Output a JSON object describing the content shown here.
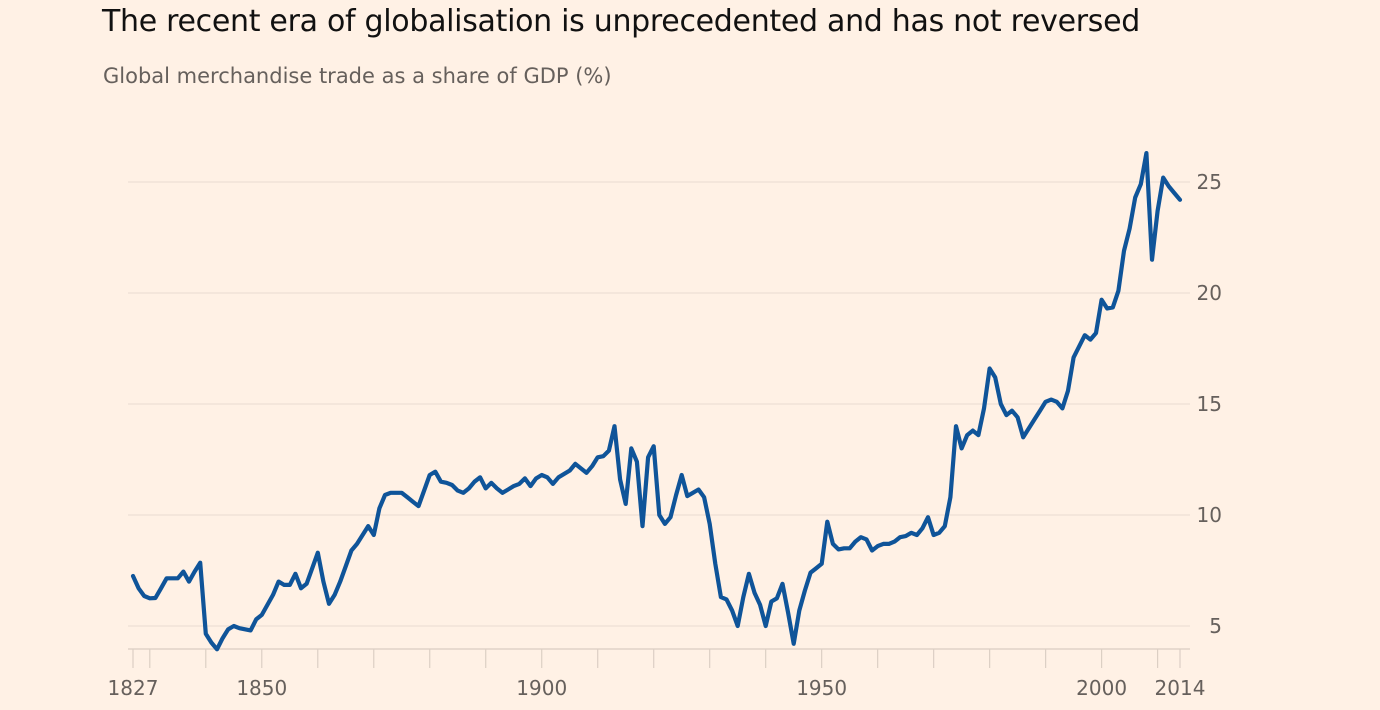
{
  "header": {
    "title": "The recent era of globalisation is unprecedented and has not reversed",
    "subtitle": "Global merchandise trade as a share of GDP (%)"
  },
  "colors": {
    "background": "#FFF1E5",
    "line": "#0F5499",
    "gridline": "#E8DCD1",
    "axis_text": "#66605C",
    "title_text": "#111111"
  },
  "chart_data": {
    "type": "line",
    "title": "The recent era of globalisation is unprecedented and has not reversed",
    "subtitle": "Global merchandise trade as a share of GDP (%)",
    "xlabel": "",
    "ylabel": "Global merchandise trade as a share of GDP (%)",
    "xlim": [
      1827,
      2014
    ],
    "ylim": [
      4,
      26.5
    ],
    "grid": true,
    "y_axis_side": "right",
    "x_ticks": [
      1827,
      1830,
      1840,
      1850,
      1860,
      1870,
      1880,
      1890,
      1900,
      1910,
      1920,
      1930,
      1940,
      1950,
      1960,
      1970,
      1980,
      1990,
      2000,
      2010,
      2014
    ],
    "x_tick_labels": [
      "1827",
      "1850",
      "1900",
      "1950",
      "2000",
      "2014"
    ],
    "y_ticks": [
      5,
      10,
      15,
      20,
      25
    ],
    "y_tick_labels": [
      "5",
      "10",
      "15",
      "20",
      "25"
    ],
    "legend": "none",
    "series": [
      {
        "name": "Global merchandise trade as a share of GDP (%)",
        "x_start": 1827,
        "x_step": 1,
        "values": [
          7.25,
          6.7,
          6.35,
          6.25,
          6.26,
          6.7,
          7.15,
          7.15,
          7.15,
          7.45,
          7.0,
          7.45,
          7.85,
          4.65,
          4.25,
          3.95,
          4.45,
          4.85,
          5.0,
          4.9,
          4.85,
          4.8,
          5.3,
          5.5,
          5.95,
          6.4,
          7.0,
          6.85,
          6.85,
          7.35,
          6.7,
          6.9,
          7.6,
          8.3,
          7.0,
          6.0,
          6.4,
          7.0,
          7.7,
          8.4,
          8.7,
          9.1,
          9.5,
          9.1,
          10.3,
          10.9,
          11.0,
          11.0,
          11.0,
          10.8,
          10.6,
          10.4,
          11.1,
          11.8,
          11.95,
          11.5,
          11.45,
          11.35,
          11.1,
          11.0,
          11.2,
          11.5,
          11.7,
          11.2,
          11.45,
          11.2,
          11.0,
          11.15,
          11.3,
          11.4,
          11.65,
          11.3,
          11.65,
          11.8,
          11.7,
          11.4,
          11.7,
          11.85,
          12.0,
          12.3,
          12.1,
          11.9,
          12.2,
          12.6,
          12.65,
          12.9,
          14.0,
          11.6,
          10.5,
          13.0,
          12.4,
          9.5,
          12.6,
          13.1,
          10.0,
          9.6,
          9.9,
          10.9,
          11.8,
          10.85,
          11.0,
          11.15,
          10.8,
          9.6,
          7.8,
          6.3,
          6.2,
          5.7,
          5.0,
          6.3,
          7.35,
          6.5,
          5.95,
          5.0,
          6.1,
          6.25,
          6.9,
          5.6,
          4.2,
          5.7,
          6.6,
          7.4,
          7.6,
          7.8,
          9.7,
          8.7,
          8.45,
          8.5,
          8.5,
          8.8,
          9.0,
          8.9,
          8.4,
          8.6,
          8.7,
          8.7,
          8.8,
          9.0,
          9.05,
          9.2,
          9.1,
          9.4,
          9.9,
          9.1,
          9.2,
          9.5,
          10.8,
          14.0,
          13.0,
          13.6,
          13.8,
          13.6,
          14.8,
          16.6,
          16.2,
          15.0,
          14.5,
          14.7,
          14.4,
          13.5,
          13.9,
          14.3,
          14.7,
          15.1,
          15.2,
          15.1,
          14.8,
          15.6,
          17.1,
          17.6,
          18.1,
          17.9,
          18.2,
          19.7,
          19.3,
          19.35,
          20.1,
          21.9,
          22.9,
          24.3,
          24.9,
          26.3,
          21.5,
          23.7,
          25.2,
          24.8,
          24.5,
          24.2
        ]
      }
    ]
  }
}
